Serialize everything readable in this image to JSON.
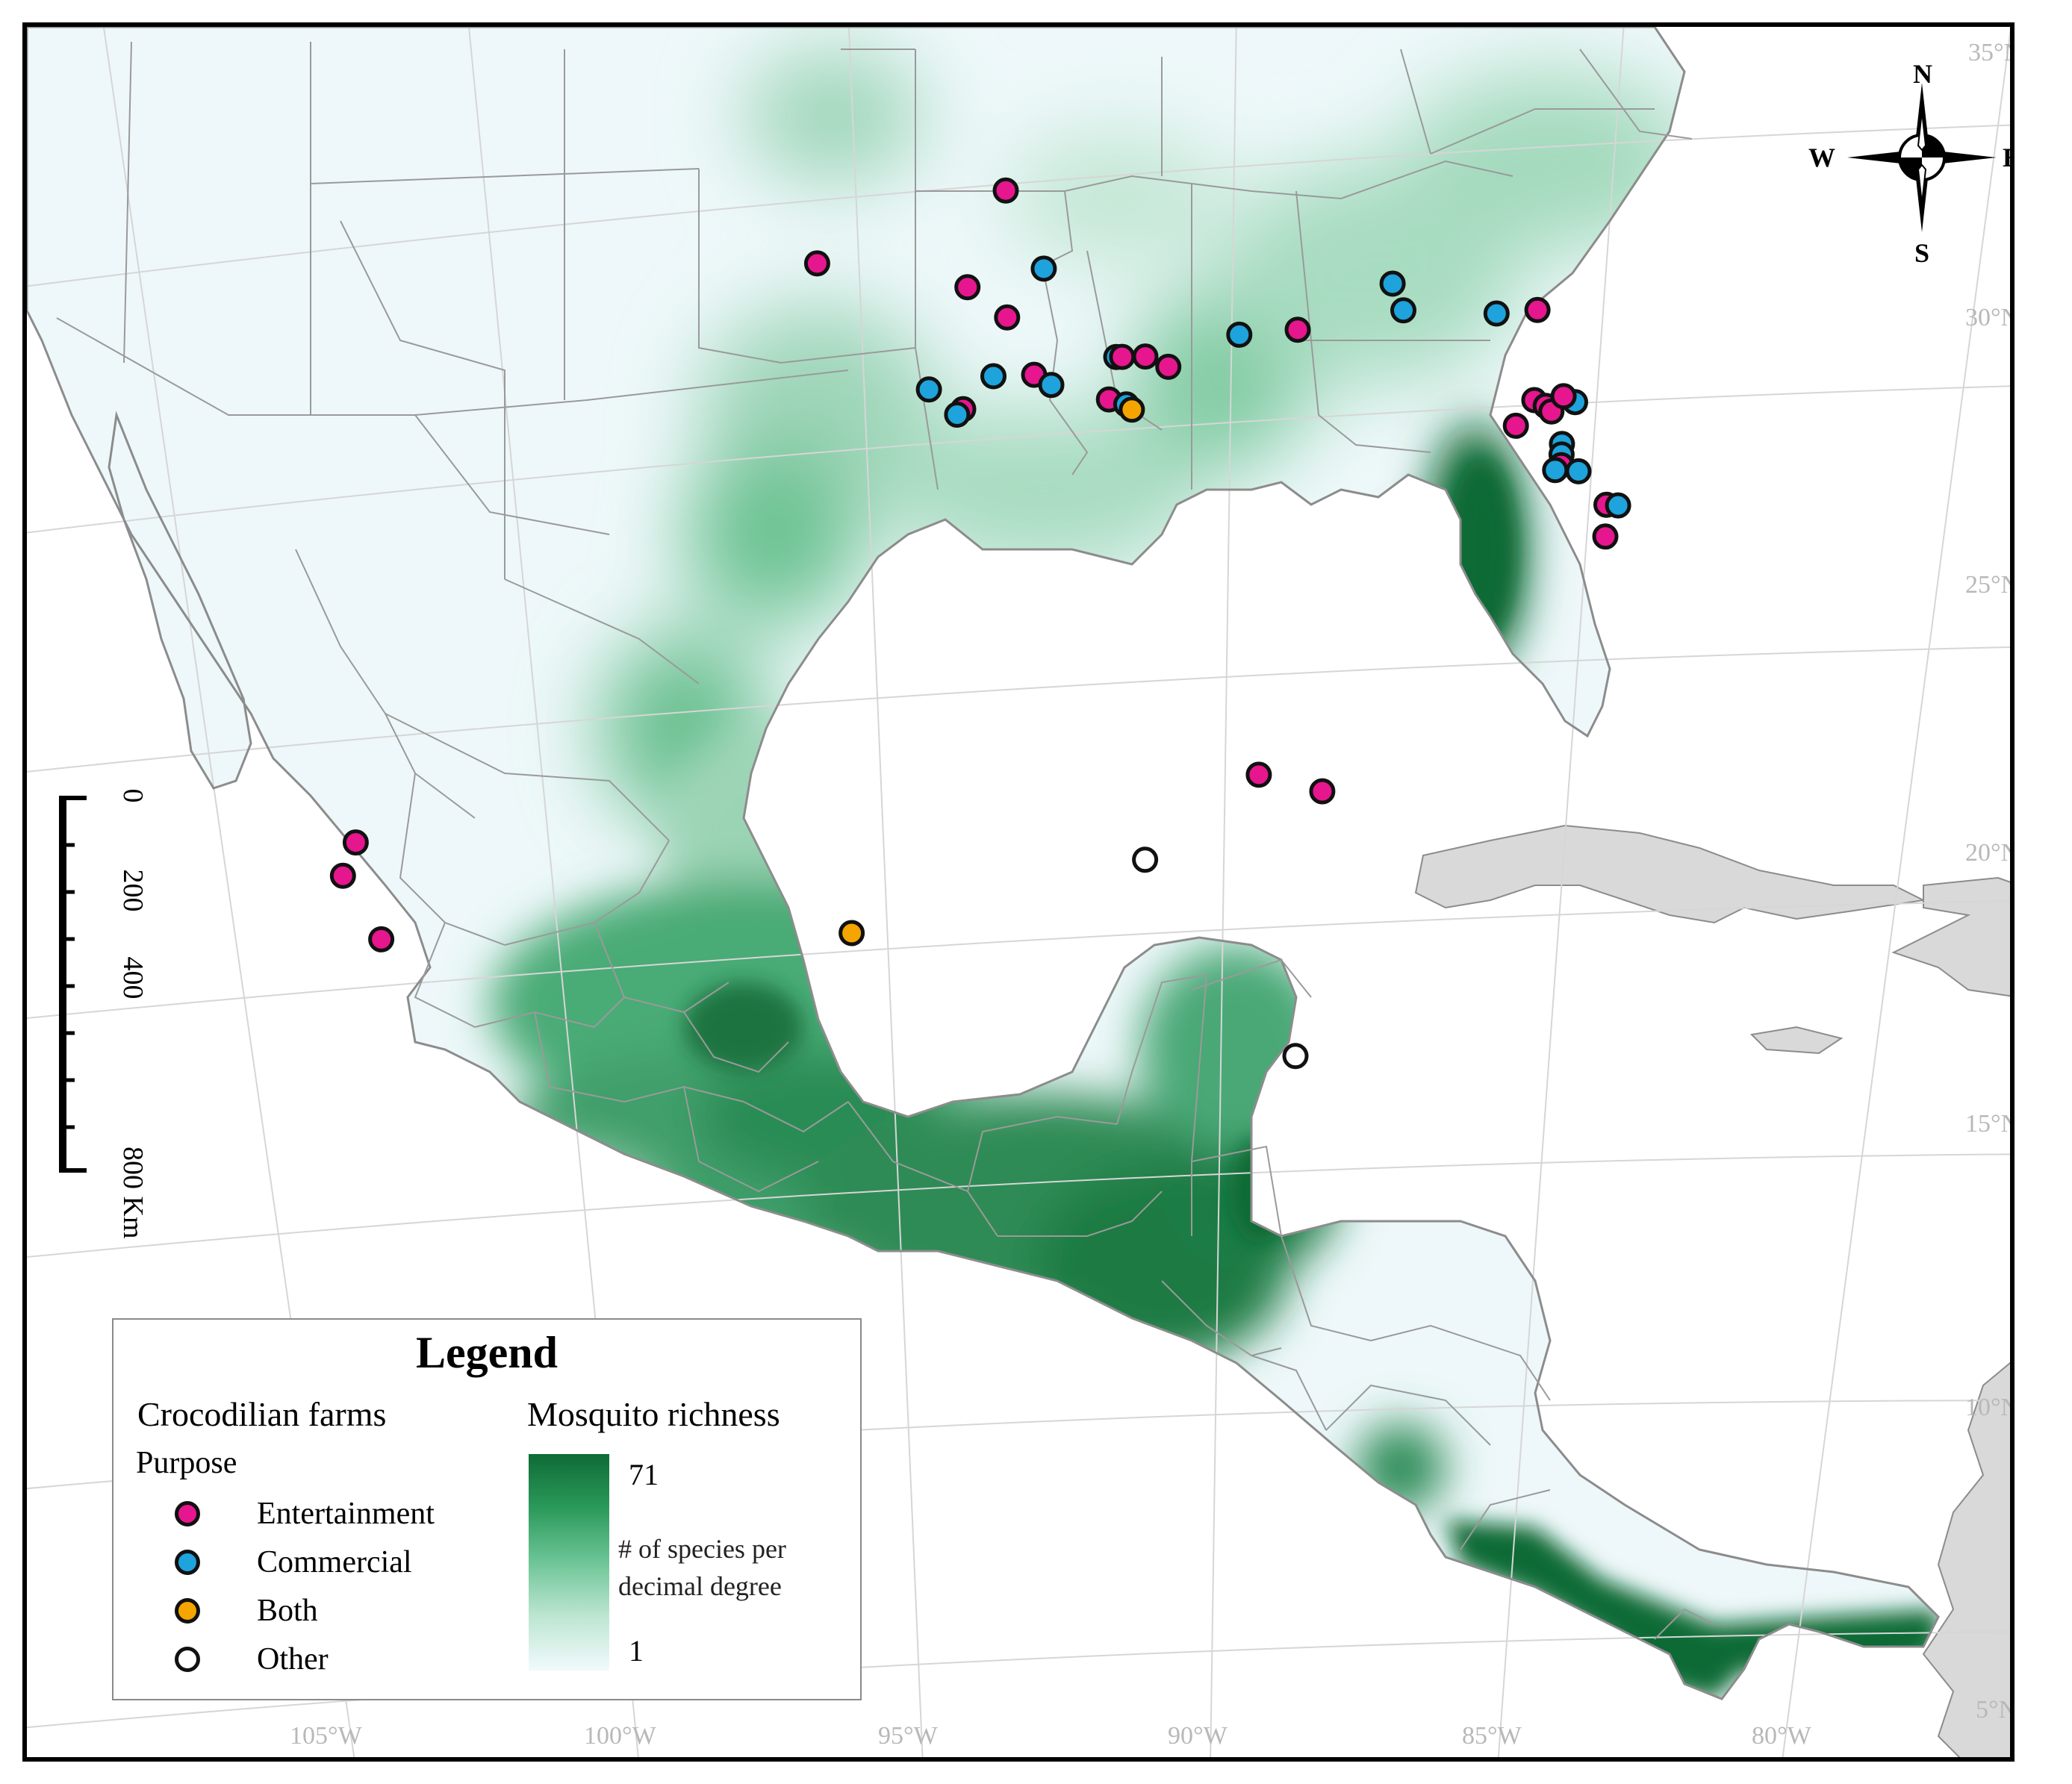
{
  "map": {
    "graticule_labels": {
      "lat": [
        "35°N",
        "30°N",
        "25°N",
        "20°N",
        "15°N",
        "10°N",
        "5°N"
      ],
      "lon": [
        "105°W",
        "100°W",
        "95°W",
        "90°W",
        "85°W",
        "80°W"
      ]
    },
    "compass": {
      "n": "N",
      "s": "S",
      "e": "E",
      "w": "W"
    },
    "scale_bar": {
      "ticks": [
        "0",
        "200",
        "400",
        "800 Km"
      ]
    },
    "colors": {
      "richness_max": "#0e6b35",
      "richness_mid": "#6ec597",
      "richness_min": "#f2fafd",
      "land_outside": "#d9d9d9",
      "water": "#ffffff",
      "borders": "#8c8c8c",
      "entertainment": "#e6168e",
      "commercial": "#1ea3dc",
      "both": "#f5a500",
      "other": "#ffffff"
    },
    "farms": [
      {
        "purpose": "Entertainment",
        "lon": -94.0,
        "lat": 33.4
      },
      {
        "purpose": "Entertainment",
        "lon": -97.2,
        "lat": 32.2
      },
      {
        "purpose": "Entertainment",
        "lon": -94.6,
        "lat": 31.6
      },
      {
        "purpose": "Commercial",
        "lon": -93.3,
        "lat": 31.9
      },
      {
        "purpose": "Entertainment",
        "lon": -93.9,
        "lat": 31.0
      },
      {
        "purpose": "Commercial",
        "lon": -95.2,
        "lat": 29.7
      },
      {
        "purpose": "Commercial",
        "lon": -94.1,
        "lat": 29.9
      },
      {
        "purpose": "Entertainment",
        "lon": -93.4,
        "lat": 29.9
      },
      {
        "purpose": "Commercial",
        "lon": -93.1,
        "lat": 29.7
      },
      {
        "purpose": "Entertainment",
        "lon": -94.6,
        "lat": 29.3
      },
      {
        "purpose": "Commercial",
        "lon": -94.7,
        "lat": 29.2
      },
      {
        "purpose": "Commercial",
        "lon": -92.0,
        "lat": 30.2
      },
      {
        "purpose": "Entertainment",
        "lon": -91.9,
        "lat": 30.2
      },
      {
        "purpose": "Entertainment",
        "lon": -91.5,
        "lat": 30.2
      },
      {
        "purpose": "Entertainment",
        "lon": -91.1,
        "lat": 30.0
      },
      {
        "purpose": "Entertainment",
        "lon": -92.1,
        "lat": 29.4
      },
      {
        "purpose": "Commercial",
        "lon": -91.8,
        "lat": 29.3
      },
      {
        "purpose": "Both",
        "lon": -91.7,
        "lat": 29.2
      },
      {
        "purpose": "Commercial",
        "lon": -89.9,
        "lat": 30.6
      },
      {
        "purpose": "Entertainment",
        "lon": -88.9,
        "lat": 30.7
      },
      {
        "purpose": "Commercial",
        "lon": -87.3,
        "lat": 31.6
      },
      {
        "purpose": "Commercial",
        "lon": -87.1,
        "lat": 31.1
      },
      {
        "purpose": "Commercial",
        "lon": -85.5,
        "lat": 31.1
      },
      {
        "purpose": "Entertainment",
        "lon": -84.8,
        "lat": 31.2
      },
      {
        "purpose": "Entertainment",
        "lon": -84.8,
        "lat": 29.5
      },
      {
        "purpose": "Entertainment",
        "lon": -84.6,
        "lat": 29.4
      },
      {
        "purpose": "Entertainment",
        "lon": -84.5,
        "lat": 29.3
      },
      {
        "purpose": "Commercial",
        "lon": -84.1,
        "lat": 29.5
      },
      {
        "purpose": "Entertainment",
        "lon": -84.3,
        "lat": 29.6
      },
      {
        "purpose": "Entertainment",
        "lon": -85.1,
        "lat": 29.0
      },
      {
        "purpose": "Commercial",
        "lon": -84.3,
        "lat": 28.7
      },
      {
        "purpose": "Commercial",
        "lon": -84.3,
        "lat": 28.5
      },
      {
        "purpose": "Entertainment",
        "lon": -84.3,
        "lat": 28.3
      },
      {
        "purpose": "Commercial",
        "lon": -84.4,
        "lat": 28.2
      },
      {
        "purpose": "Commercial",
        "lon": -84.0,
        "lat": 28.2
      },
      {
        "purpose": "Entertainment",
        "lon": -83.5,
        "lat": 27.6
      },
      {
        "purpose": "Commercial",
        "lon": -83.3,
        "lat": 27.6
      },
      {
        "purpose": "Entertainment",
        "lon": -83.5,
        "lat": 27.0
      },
      {
        "purpose": "Entertainment",
        "lon": -104.8,
        "lat": 22.1
      },
      {
        "purpose": "Entertainment",
        "lon": -105.0,
        "lat": 21.5
      },
      {
        "purpose": "Entertainment",
        "lon": -104.3,
        "lat": 20.2
      },
      {
        "purpose": "Both",
        "lon": -96.2,
        "lat": 19.5
      },
      {
        "purpose": "Other",
        "lon": -91.2,
        "lat": 20.7
      },
      {
        "purpose": "Entertainment",
        "lon": -89.3,
        "lat": 22.3
      },
      {
        "purpose": "Entertainment",
        "lon": -88.2,
        "lat": 22.0
      },
      {
        "purpose": "Other",
        "lon": -88.5,
        "lat": 17.0
      }
    ]
  },
  "legend": {
    "title": "Legend",
    "farms_heading": "Crocodilian farms",
    "purpose_heading": "Purpose",
    "items": [
      {
        "label": "Entertainment",
        "color": "#e6168e"
      },
      {
        "label": "Commercial",
        "color": "#1ea3dc"
      },
      {
        "label": "Both",
        "color": "#f5a500"
      },
      {
        "label": "Other",
        "color": "#ffffff"
      }
    ],
    "richness_heading": "Mosquito richness",
    "ramp_max": "71",
    "ramp_min": "1",
    "ramp_desc_line1": "# of species per",
    "ramp_desc_line2": "decimal degree"
  }
}
